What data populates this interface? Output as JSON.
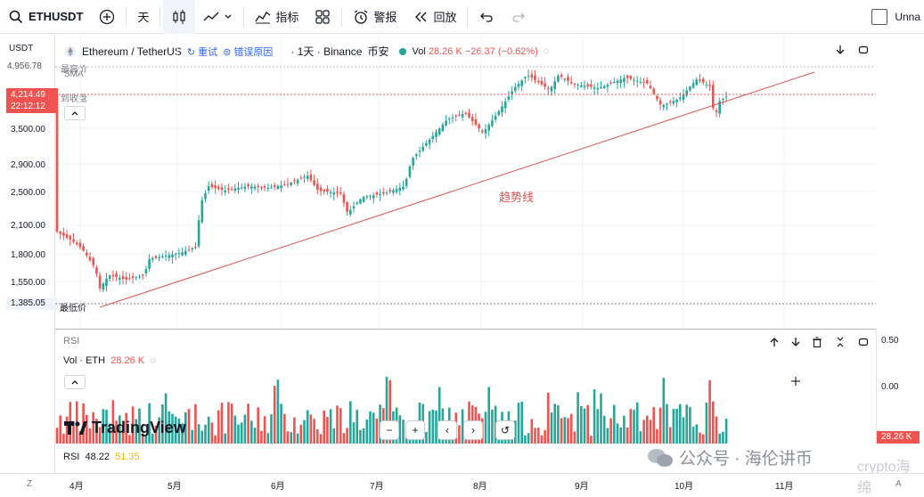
{
  "topbar": {
    "symbol": "ETHUSDT",
    "interval": "天",
    "indicators": "指标",
    "alerts": "警报",
    "replay": "回放",
    "unnamed": "Unna"
  },
  "legend": {
    "pair": "Ethereum / TetherUS",
    "retry": "重试",
    "error_reason": "错误原因",
    "interval_exchange": "· 1天 · Binance",
    "exchange_cn": "币安",
    "vol_label": "Vol",
    "vol_value": "28.26 K",
    "change": "−26.37 (−0.62%)"
  },
  "price_axis": {
    "currency": "USDT",
    "labels": [
      "3,500.00",
      "2,900.00",
      "2,500.00",
      "2,100.00",
      "1,800.00",
      "1,550.00"
    ],
    "high_label": "4,956.78",
    "high_text": "最高价",
    "sma_text": "SMA",
    "current_price": "4,214.49",
    "countdown": "22:12:12",
    "close_text": "到收盘",
    "low_label": "1,385.05",
    "low_text": "最低价"
  },
  "annotation": {
    "trendline_text": "趋势线"
  },
  "rsi_pane": {
    "rsi_title": "RSI",
    "vol_legend": "Vol · ETH",
    "vol_legend_value": "28.26 K",
    "rsi_label": "RSI",
    "rsi_value": "48.22",
    "rsi_ma_value": "51.35",
    "right_labels": [
      "0.50",
      "0.00"
    ],
    "vol_badge": "28.26 K"
  },
  "time_axis": {
    "labels": [
      "4月",
      "5月",
      "6月",
      "7月",
      "8月",
      "9月",
      "10月",
      "11月"
    ]
  },
  "watermark": {
    "brand": "TradingView",
    "wechat": "公众号 · 海伦讲币",
    "crypto": "crypto海绵"
  },
  "colors": {
    "up": "#26a69a",
    "down": "#ef5350",
    "trend": "#d9534f",
    "grid": "#f0f3fa"
  },
  "chart_data": {
    "type": "candlestick",
    "title": "Ethereum / TetherUS · 1天 · Binance",
    "ylim": [
      1385.05,
      4956.78
    ],
    "x": [
      "4月",
      "5月",
      "6月",
      "7月",
      "8月",
      "9月",
      "10月",
      "11月"
    ],
    "last_close": 4214.49,
    "rsi": 48.22,
    "rsi_ma": 51.35
  }
}
